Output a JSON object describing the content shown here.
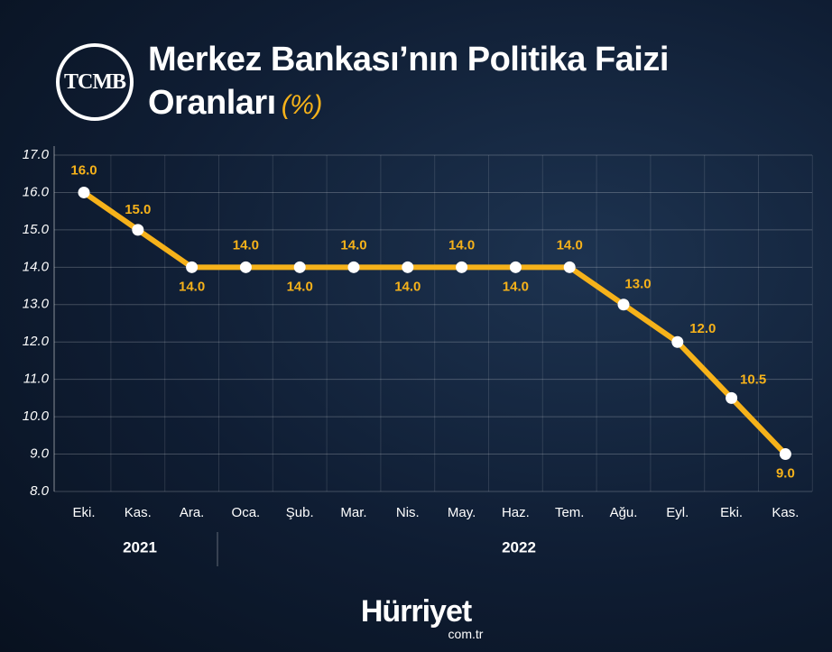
{
  "header": {
    "logo": "TCMB"
  },
  "chart_data": {
    "type": "line",
    "title": "Merkez Bankası’nın Politika Faizi Oranları",
    "title_unit": "(%)",
    "categories": [
      "Eki.",
      "Kas.",
      "Ara.",
      "Oca.",
      "Şub.",
      "Mar.",
      "Nis.",
      "May.",
      "Haz.",
      "Tem.",
      "Ağu.",
      "Eyl.",
      "Eki.",
      "Kas."
    ],
    "values": [
      16,
      15,
      14,
      14,
      14,
      14,
      14,
      14,
      14,
      14,
      13,
      12,
      10.5,
      9
    ],
    "value_labels": [
      "16.0",
      "15.0",
      "14.0",
      "14.0",
      "14.0",
      "14.0",
      "14.0",
      "14.0",
      "14.0",
      "14.0",
      "13.0",
      "12.0",
      "10.5",
      "9.0"
    ],
    "color": "#f6b21a",
    "ylim": [
      8,
      17
    ],
    "yticks": [
      {
        "value": 8,
        "label": "8.0"
      },
      {
        "value": 9,
        "label": "9.0"
      },
      {
        "value": 10,
        "label": "10.0"
      },
      {
        "value": 11,
        "label": "11.0"
      },
      {
        "value": 12,
        "label": "12.0"
      },
      {
        "value": 13,
        "label": "13.0"
      },
      {
        "value": 14,
        "label": "14.0"
      },
      {
        "value": 15,
        "label": "15.0"
      },
      {
        "value": 16,
        "label": "16.0"
      },
      {
        "value": 17,
        "label": "17.0"
      }
    ],
    "grid": true,
    "year_labels": [
      "2021",
      "2022"
    ]
  },
  "footer": {
    "brand": "Hürriyet",
    "domain": "com.tr"
  }
}
